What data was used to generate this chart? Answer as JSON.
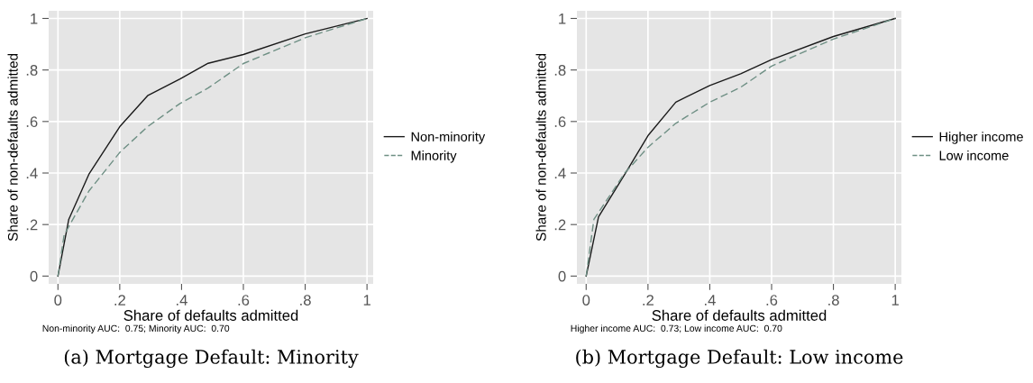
{
  "chart_data": [
    {
      "type": "line",
      "title": "(a) Mortgage Default: Minority",
      "xlabel": "Share of defaults admitted",
      "ylabel": "Share of non-defaults admitted",
      "annotations": [
        "Non-minority AUC:  0.75; Minority AUC:  0.70"
      ],
      "xlim": [
        -0.03,
        1.02
      ],
      "ylim": [
        -0.03,
        1.03
      ],
      "xticks": [
        0,
        {
          "value": 0.2,
          "label": ".2"
        },
        {
          "value": 0.4,
          "label": ".4"
        },
        {
          "value": 0.6,
          "label": ".6"
        },
        {
          "value": 0.8,
          "label": ".8"
        },
        1
      ],
      "yticks": [
        0,
        {
          "value": 0.2,
          "label": ".2"
        },
        {
          "value": 0.4,
          "label": ".4"
        },
        {
          "value": 0.6,
          "label": ".6"
        },
        {
          "value": 0.8,
          "label": ".8"
        },
        1
      ],
      "grid": true,
      "legend": "right",
      "marker": "none",
      "series": [
        {
          "name": "Non-minority",
          "color": "#1a1a1a",
          "line_style": "solid",
          "x": [
            0,
            0.035,
            0.1,
            0.2,
            0.29,
            0.395,
            0.486,
            0.6,
            0.8,
            1
          ],
          "values": [
            0,
            0.22,
            0.395,
            0.58,
            0.7,
            0.765,
            0.826,
            0.86,
            0.94,
            1
          ]
        },
        {
          "name": "Minority",
          "color": "#6e8f84",
          "line_style": "dashed",
          "x": [
            0,
            0.02,
            0.1,
            0.2,
            0.29,
            0.395,
            0.486,
            0.6,
            0.8,
            1
          ],
          "values": [
            0,
            0.16,
            0.33,
            0.48,
            0.58,
            0.67,
            0.73,
            0.825,
            0.925,
            1
          ]
        }
      ]
    },
    {
      "type": "line",
      "title": "(b) Mortgage Default: Low income",
      "xlabel": "Share of defaults admitted",
      "ylabel": "Share of non-defaults admitted",
      "annotations": [
        "Higher income AUC:  0.73; Low income AUC:  0.70"
      ],
      "xlim": [
        -0.03,
        1.02
      ],
      "ylim": [
        -0.03,
        1.03
      ],
      "xticks": [
        0,
        {
          "value": 0.2,
          "label": ".2"
        },
        {
          "value": 0.4,
          "label": ".4"
        },
        {
          "value": 0.6,
          "label": ".6"
        },
        {
          "value": 0.8,
          "label": ".8"
        },
        1
      ],
      "yticks": [
        0,
        {
          "value": 0.2,
          "label": ".2"
        },
        {
          "value": 0.4,
          "label": ".4"
        },
        {
          "value": 0.6,
          "label": ".6"
        },
        {
          "value": 0.8,
          "label": ".8"
        },
        1
      ],
      "grid": true,
      "legend": "right",
      "marker": "none",
      "series": [
        {
          "name": "Higher income",
          "color": "#1a1a1a",
          "line_style": "solid",
          "x": [
            0,
            0.04,
            0.125,
            0.2,
            0.29,
            0.4,
            0.5,
            0.6,
            0.8,
            1
          ],
          "values": [
            0,
            0.23,
            0.395,
            0.545,
            0.675,
            0.74,
            0.785,
            0.84,
            0.93,
            1
          ]
        },
        {
          "name": "Low income",
          "color": "#6e8f84",
          "line_style": "dashed",
          "x": [
            0,
            0.025,
            0.125,
            0.2,
            0.29,
            0.4,
            0.5,
            0.6,
            0.8,
            1
          ],
          "values": [
            0,
            0.22,
            0.4,
            0.5,
            0.593,
            0.675,
            0.733,
            0.815,
            0.92,
            1
          ]
        }
      ]
    }
  ]
}
